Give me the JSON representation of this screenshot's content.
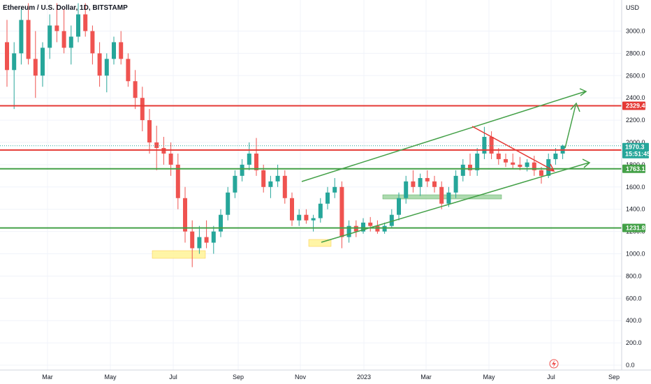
{
  "chart_data": {
    "type": "candlestick",
    "title": "Ethereum / U.S. Dollar, 1D, BITSTAMP",
    "currency_label": "USD",
    "y_axis": {
      "ticks": [
        "3000.0",
        "2800.0",
        "2600.0",
        "2400.0",
        "2200.0",
        "2000.0",
        "1800.0",
        "1600.0",
        "1400.0",
        "1200.0",
        "1000.0",
        "800.0",
        "600.0",
        "400.0",
        "200.0",
        "0.0"
      ],
      "range": [
        -20,
        3280
      ],
      "scale": "linear",
      "position": "right"
    },
    "x_axis": {
      "labels": [
        "Mar",
        "May",
        "Jul",
        "Sep",
        "Nov",
        "2023",
        "Mar",
        "May",
        "Jul",
        "Sep"
      ]
    },
    "grid": true,
    "price_series": [
      [
        0,
        2900,
        3100,
        2500,
        2650
      ],
      [
        1,
        2650,
        2900,
        2300,
        2800
      ],
      [
        2,
        2800,
        3200,
        2700,
        3100
      ],
      [
        3,
        3100,
        3250,
        2700,
        2750
      ],
      [
        4,
        2750,
        3000,
        2400,
        2600
      ],
      [
        5,
        2600,
        2900,
        2500,
        2850
      ],
      [
        6,
        2850,
        3150,
        2750,
        3050
      ],
      [
        7,
        3050,
        3250,
        2900,
        3000
      ],
      [
        8,
        3000,
        3200,
        2800,
        2850
      ],
      [
        9,
        2850,
        3050,
        2700,
        2950
      ],
      [
        10,
        2950,
        3250,
        2900,
        3150
      ],
      [
        11,
        3150,
        3250,
        2950,
        3000
      ],
      [
        12,
        3000,
        3050,
        2700,
        2800
      ],
      [
        13,
        2800,
        2900,
        2500,
        2600
      ],
      [
        14,
        2600,
        2800,
        2450,
        2750
      ],
      [
        15,
        2750,
        2950,
        2700,
        2900
      ],
      [
        16,
        2900,
        3000,
        2700,
        2750
      ],
      [
        17,
        2750,
        2800,
        2500,
        2550
      ],
      [
        18,
        2550,
        2650,
        2300,
        2400
      ],
      [
        19,
        2400,
        2500,
        2100,
        2200
      ],
      [
        20,
        2200,
        2300,
        1900,
        2000
      ],
      [
        21,
        2000,
        2150,
        1750,
        1950
      ],
      [
        22,
        1950,
        2050,
        1800,
        1900
      ],
      [
        23,
        1900,
        2000,
        1700,
        1800
      ],
      [
        24,
        1800,
        1900,
        1400,
        1500
      ],
      [
        25,
        1500,
        1600,
        1100,
        1200
      ],
      [
        26,
        1200,
        1300,
        880,
        1050
      ],
      [
        27,
        1050,
        1250,
        1000,
        1150
      ],
      [
        28,
        1150,
        1300,
        1050,
        1100
      ],
      [
        29,
        1100,
        1250,
        1000,
        1200
      ],
      [
        30,
        1200,
        1400,
        1150,
        1350
      ],
      [
        31,
        1350,
        1600,
        1300,
        1550
      ],
      [
        32,
        1550,
        1750,
        1500,
        1700
      ],
      [
        33,
        1700,
        1850,
        1650,
        1800
      ],
      [
        34,
        1800,
        2000,
        1750,
        1900
      ],
      [
        35,
        1900,
        2040,
        1700,
        1750
      ],
      [
        36,
        1750,
        1800,
        1550,
        1600
      ],
      [
        37,
        1600,
        1700,
        1500,
        1650
      ],
      [
        38,
        1650,
        1800,
        1600,
        1700
      ],
      [
        39,
        1700,
        1750,
        1450,
        1500
      ],
      [
        40,
        1500,
        1550,
        1250,
        1300
      ],
      [
        41,
        1300,
        1400,
        1250,
        1350
      ],
      [
        42,
        1350,
        1400,
        1270,
        1300
      ],
      [
        43,
        1300,
        1350,
        1200,
        1320
      ],
      [
        44,
        1320,
        1500,
        1280,
        1450
      ],
      [
        45,
        1450,
        1600,
        1400,
        1550
      ],
      [
        46,
        1550,
        1680,
        1500,
        1600
      ],
      [
        47,
        1600,
        1650,
        1050,
        1150
      ],
      [
        48,
        1150,
        1300,
        1100,
        1250
      ],
      [
        49,
        1250,
        1300,
        1150,
        1200
      ],
      [
        50,
        1200,
        1320,
        1180,
        1280
      ],
      [
        51,
        1280,
        1330,
        1200,
        1250
      ],
      [
        52,
        1250,
        1300,
        1180,
        1200
      ],
      [
        53,
        1200,
        1280,
        1180,
        1250
      ],
      [
        54,
        1250,
        1400,
        1230,
        1350
      ],
      [
        55,
        1350,
        1550,
        1300,
        1500
      ],
      [
        56,
        1500,
        1700,
        1450,
        1650
      ],
      [
        57,
        1650,
        1750,
        1550,
        1600
      ],
      [
        58,
        1600,
        1720,
        1520,
        1680
      ],
      [
        59,
        1680,
        1750,
        1600,
        1650
      ],
      [
        60,
        1650,
        1700,
        1550,
        1600
      ],
      [
        61,
        1600,
        1650,
        1400,
        1450
      ],
      [
        62,
        1450,
        1600,
        1420,
        1550
      ],
      [
        63,
        1550,
        1750,
        1500,
        1700
      ],
      [
        64,
        1700,
        1850,
        1650,
        1800
      ],
      [
        65,
        1800,
        1900,
        1700,
        1750
      ],
      [
        66,
        1750,
        1950,
        1700,
        1900
      ],
      [
        67,
        1900,
        2140,
        1850,
        2050
      ],
      [
        68,
        2050,
        2100,
        1850,
        1900
      ],
      [
        69,
        1900,
        1950,
        1800,
        1850
      ],
      [
        70,
        1850,
        1900,
        1780,
        1820
      ],
      [
        71,
        1820,
        1900,
        1760,
        1800
      ],
      [
        72,
        1800,
        1870,
        1750,
        1780
      ],
      [
        73,
        1780,
        1850,
        1740,
        1820
      ],
      [
        74,
        1820,
        1880,
        1700,
        1750
      ],
      [
        75,
        1750,
        1780,
        1630,
        1700
      ],
      [
        76,
        1700,
        1900,
        1680,
        1850
      ],
      [
        77,
        1850,
        1950,
        1800,
        1900
      ],
      [
        78,
        1900,
        1980,
        1850,
        1970.3
      ]
    ],
    "horizontal_levels": [
      {
        "price": 2329.4,
        "label": "2329.4",
        "color": "#e53935"
      },
      {
        "price": 1931.9,
        "label": "1931.9",
        "color": "#e53935"
      },
      {
        "price": 1763.1,
        "label": "1763.1",
        "color": "#43a047"
      },
      {
        "price": 1231.8,
        "label": "1231.8",
        "color": "#43a047"
      }
    ],
    "current_price": {
      "label": "1970.3",
      "countdown": "15:51:45",
      "color": "#26a69a"
    },
    "colors": {
      "up": "#26a69a",
      "down": "#ef5350",
      "green": "#43a047",
      "red": "#e53935",
      "zone_yellow": "#fff59d",
      "zone_green": "#a5d6a7"
    }
  }
}
